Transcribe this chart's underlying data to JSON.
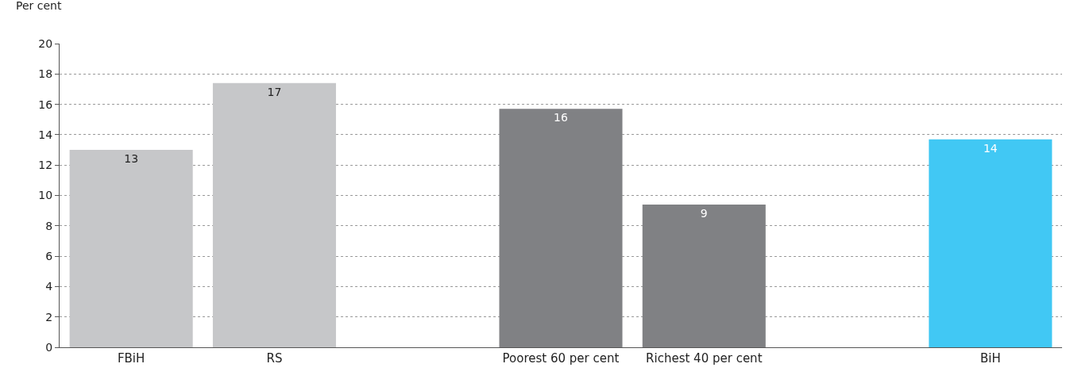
{
  "chart_data": {
    "type": "bar",
    "ylabel": "Per cent",
    "categories": [
      "FBiH",
      "RS",
      null,
      "Poorest 60 per cent",
      "Richest 40 per cent",
      null,
      "BiH"
    ],
    "values": [
      13,
      17.4,
      null,
      15.7,
      9.4,
      null,
      13.7
    ],
    "value_labels": [
      "13",
      "17",
      null,
      "16",
      "9",
      null,
      "14"
    ],
    "colors": [
      "#c6c7c9",
      "#c6c7c9",
      null,
      "#808184",
      "#808184",
      null,
      "#41c8f4"
    ],
    "ylim": [
      0,
      20
    ],
    "yticks": [
      0,
      2,
      4,
      6,
      8,
      10,
      12,
      14,
      16,
      18,
      20
    ],
    "grid": "y",
    "legend": false
  }
}
